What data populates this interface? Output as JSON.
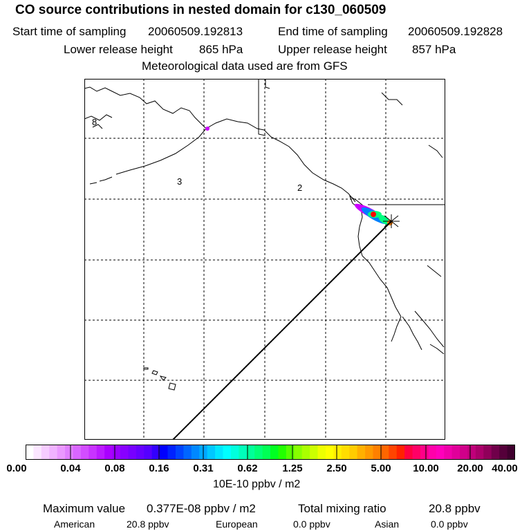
{
  "header": {
    "title": "CO  source contributions in nested domain for c130_060509",
    "start_label": "Start time of sampling",
    "start_time": "20060509.192813",
    "end_label": "End time of sampling",
    "end_time": "20060509.192828",
    "lower_label": "Lower release height",
    "lower_value": "865 hPa",
    "upper_label": "Upper release height",
    "upper_value": "857 hPa",
    "met_line": "Meteorological data used are from GFS"
  },
  "map": {
    "region_labels": [
      "8",
      "3",
      "2"
    ],
    "colors": {
      "coast": "#000000",
      "grid": "#000000",
      "track": "#000000",
      "plume_core": "#ff0000",
      "plume_mid": "#00ff80",
      "plume_edge": "#0080ff",
      "plume_outer": "#cc00ff"
    }
  },
  "colorbar": {
    "unit_label": "10E-10 ppbv / m2",
    "tick_labels": [
      "0.00",
      "0.04",
      "0.08",
      "0.16",
      "0.31",
      "0.62",
      "1.25",
      "2.50",
      "5.00",
      "10.00",
      "20.00",
      "40.00"
    ],
    "colors": [
      "#ffffff",
      "#fbe6ff",
      "#f6ccff",
      "#f0b3ff",
      "#ea99ff",
      "#e080ff",
      "#d966ff",
      "#d24dff",
      "#c833ff",
      "#bb1aff",
      "#aa00ff",
      "#9900ff",
      "#8800ff",
      "#7700ff",
      "#6600ff",
      "#5500ff",
      "#3300ff",
      "#0000ff",
      "#0022ff",
      "#0044ff",
      "#0066ff",
      "#0088ff",
      "#00a8ff",
      "#00c8ff",
      "#00e6ff",
      "#00ffff",
      "#00ffdd",
      "#00ffbb",
      "#00ff99",
      "#00ff77",
      "#00ff55",
      "#00ff22",
      "#22ff00",
      "#55ff00",
      "#88ff00",
      "#aaff00",
      "#ccff00",
      "#eeff00",
      "#ffff00",
      "#ffee00",
      "#ffdd00",
      "#ffcc00",
      "#ffb000",
      "#ff9900",
      "#ff8000",
      "#ff6600",
      "#ff4400",
      "#ff2200",
      "#ff0040",
      "#ff0066",
      "#ff0088",
      "#ff00aa",
      "#ff00bb",
      "#f000aa",
      "#e0009a",
      "#d0008a",
      "#c0007a",
      "#aa006a",
      "#90005a",
      "#70004a",
      "#55003a",
      "#40002e"
    ]
  },
  "summary": {
    "max_label": "Maximum value",
    "max_value": "0.377E-08 ppbv / m2",
    "total_label": "Total mixing ratio",
    "total_value": "20.8 ppbv",
    "american_label": "American",
    "american_value": "20.8 ppbv",
    "european_label": "European",
    "european_value": "0.0 ppbv",
    "asian_label": "Asian",
    "asian_value": "0.0 ppbv"
  }
}
